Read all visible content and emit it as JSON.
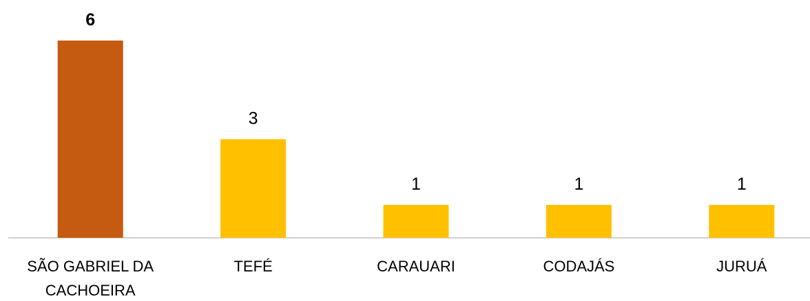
{
  "chart_data": {
    "type": "bar",
    "categories": [
      "SÃO GABRIEL DA CACHOEIRA",
      "TEFÉ",
      "CARAUARI",
      "CODAJÁS",
      "JURUÁ"
    ],
    "values": [
      6,
      3,
      1,
      1,
      1
    ],
    "colors": [
      "#c55a11",
      "#ffc000",
      "#ffc000",
      "#ffc000",
      "#ffc000"
    ],
    "value_label_bold": [
      true,
      false,
      false,
      false,
      false
    ]
  }
}
